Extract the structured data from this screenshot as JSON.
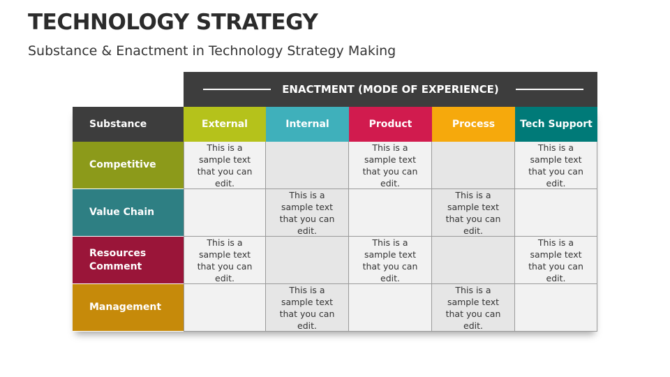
{
  "title": "TECHNOLOGY STRATEGY",
  "subtitle": "Substance & Enactment in Technology Strategy Making",
  "enactment_header": "ENACTMENT (MODE OF EXPERIENCE)",
  "substance_header": "Substance",
  "columns": [
    {
      "label": "External",
      "color": "#b5c21b"
    },
    {
      "label": "Internal",
      "color": "#3fb0bb"
    },
    {
      "label": "Product",
      "color": "#d11b4e"
    },
    {
      "label": "Process",
      "color": "#f6a90c"
    },
    {
      "label": "Tech Support",
      "color": "#007a78"
    }
  ],
  "rows": [
    {
      "label": "Competitive",
      "color": "#8c9a1a",
      "cells": [
        "This is a sample text that you can edit.",
        "",
        "This is a sample text that you can edit.",
        "",
        "This is a sample text that you can edit."
      ]
    },
    {
      "label": "Value Chain",
      "color": "#2e7f83",
      "cells": [
        "",
        "This is a sample text that you can edit.",
        "",
        "This is a sample text that you can edit.",
        ""
      ]
    },
    {
      "label": "Resources Comment",
      "color": "#9a1539",
      "cells": [
        "This is a sample text that you can edit.",
        "",
        "This is a sample text that you can edit.",
        "",
        "This is a sample text that you can edit."
      ]
    },
    {
      "label": "Management",
      "color": "#c68a0a",
      "cells": [
        "",
        "This is a sample text that you can edit.",
        "",
        "This is a sample text that you can edit.",
        ""
      ]
    }
  ]
}
